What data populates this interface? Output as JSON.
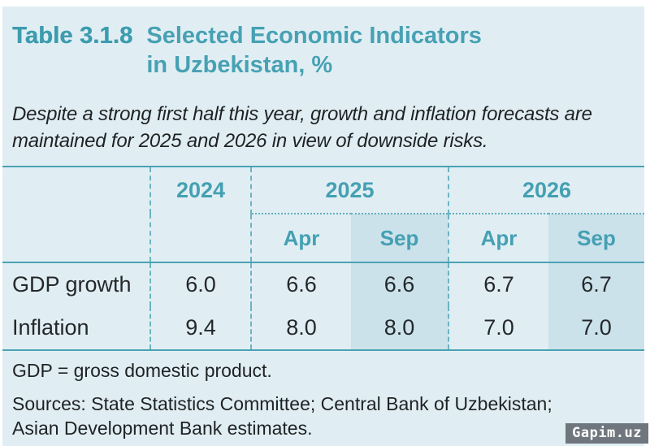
{
  "header": {
    "table_label": "Table 3.1.8",
    "title_line1": "Selected Economic Indicators",
    "title_line2": "in Uzbekistan, %"
  },
  "subtitle": {
    "line1": "Despite a strong first half this year, growth and inflation forecasts are",
    "line2": "maintained for 2025 and 2026 in view of downside risks."
  },
  "table": {
    "years": [
      "2024",
      "2025",
      "2026"
    ],
    "subheaders": [
      "Apr",
      "Sep",
      "Apr",
      "Sep"
    ],
    "rows": [
      {
        "label": "GDP growth",
        "values": [
          "6.0",
          "6.6",
          "6.6",
          "6.7",
          "6.7"
        ]
      },
      {
        "label": "Inflation",
        "values": [
          "9.4",
          "8.0",
          "8.0",
          "7.0",
          "7.0"
        ]
      }
    ]
  },
  "footer": {
    "note": "GDP = gross domestic product.",
    "sources_line1": "Sources: State Statistics Committee; Central Bank of Uzbekistan;",
    "sources_line2": "Asian Development Bank estimates."
  },
  "watermark": {
    "text": "Gapim.uz"
  },
  "colors": {
    "accent_teal": "#44a0b2",
    "background": "#e0eef4",
    "shaded_column": "#cbe2eb",
    "body_text": "#25282a",
    "watermark_bg": "#6f767d"
  },
  "chart_data": {
    "type": "table",
    "title": "Table 3.1.8 Selected Economic Indicators in Uzbekistan, %",
    "subtitle": "Despite a strong first half this year, growth and inflation forecasts are maintained for 2025 and 2026 in view of downside risks.",
    "column_groups": [
      {
        "label": "2024",
        "span": 1
      },
      {
        "label": "2025",
        "span": 2,
        "sub": [
          "Apr",
          "Sep"
        ]
      },
      {
        "label": "2026",
        "span": 2,
        "sub": [
          "Apr",
          "Sep"
        ]
      }
    ],
    "columns": [
      "2024",
      "2025 Apr",
      "2025 Sep",
      "2026 Apr",
      "2026 Sep"
    ],
    "rows": [
      {
        "label": "GDP growth",
        "values": [
          6.0,
          6.6,
          6.6,
          6.7,
          6.7
        ]
      },
      {
        "label": "Inflation",
        "values": [
          9.4,
          8.0,
          8.0,
          7.0,
          7.0
        ]
      }
    ],
    "unit": "%",
    "highlighted_columns": [
      "2025 Sep",
      "2026 Sep"
    ],
    "notes": [
      "GDP = gross domestic product."
    ],
    "sources": "Sources: State Statistics Committee; Central Bank of Uzbekistan; Asian Development Bank estimates."
  }
}
